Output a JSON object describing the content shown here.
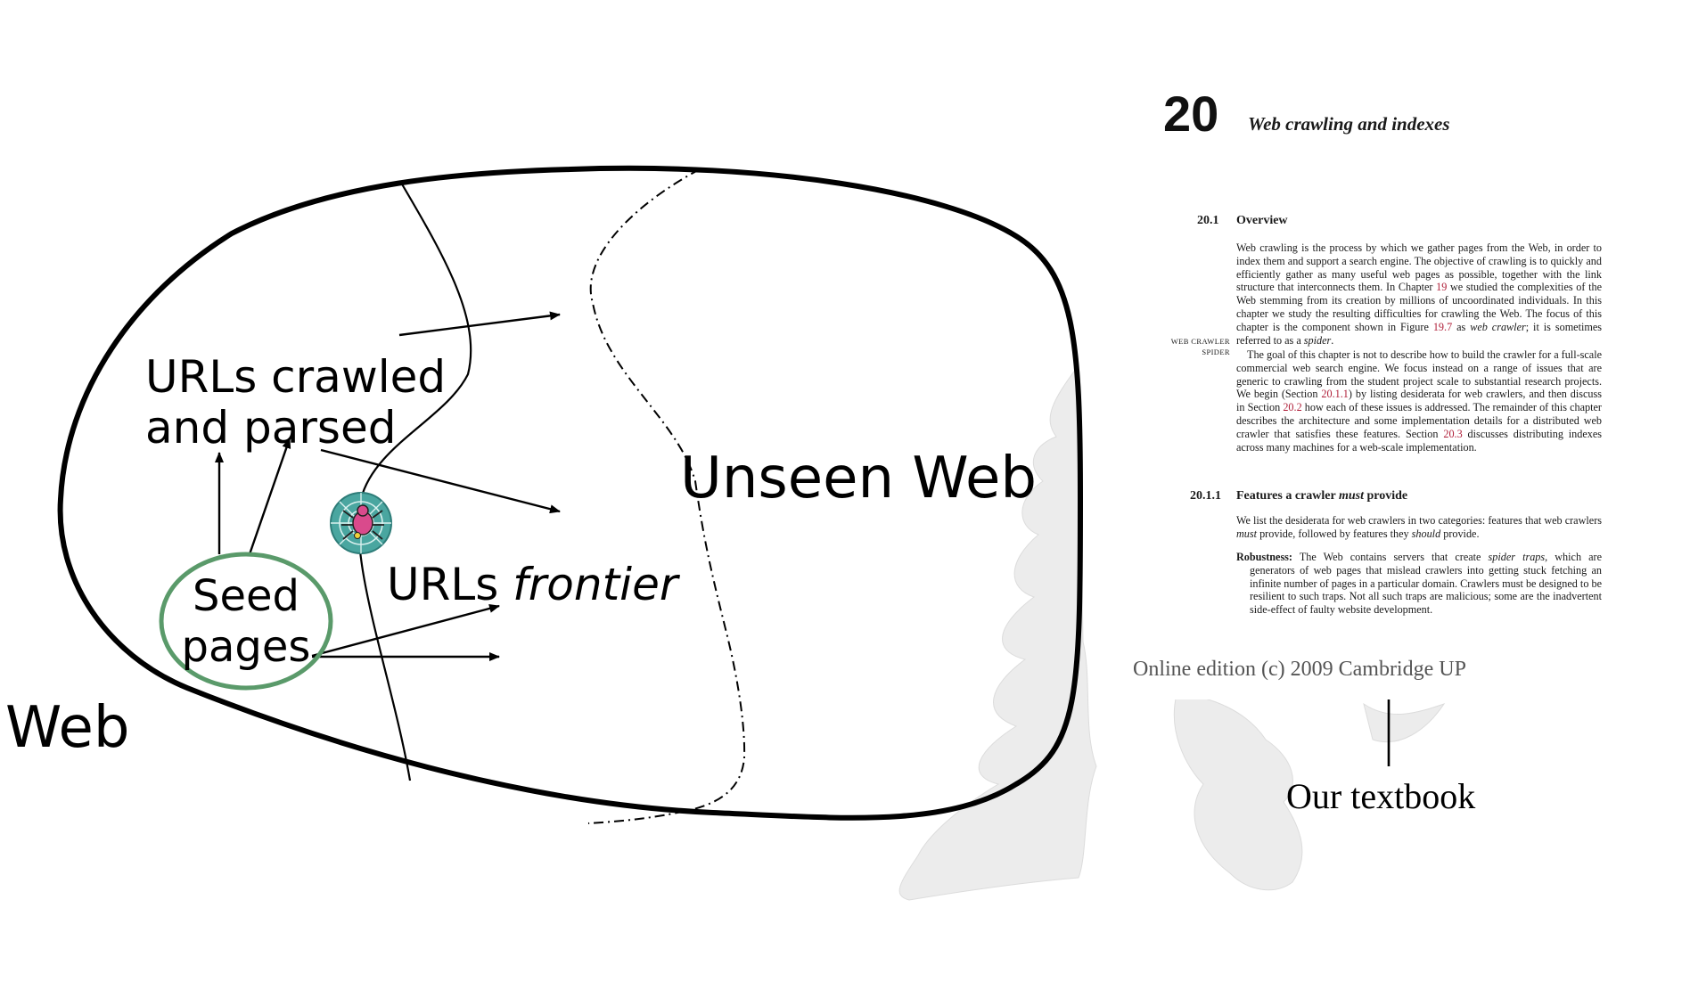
{
  "diagram": {
    "label_web": "Web",
    "label_unseen_web": "Unseen Web",
    "label_crawled_line1": "URLs crawled",
    "label_crawled_line2": "and parsed",
    "label_frontier_prefix": "URLs ",
    "label_frontier_italic": "frontier",
    "label_seed_line1": "Seed",
    "label_seed_line2": "pages",
    "seed_ring_color": "#5a9a6a",
    "spider_icon": "spider-web-icon",
    "shape_color": "#000000"
  },
  "book": {
    "chapter_number": "20",
    "chapter_title": "Web crawling and indexes",
    "section_number": "20.1",
    "section_title": "Overview",
    "para1_a": "Web crawling is the process by which we gather pages from the Web, in order to index them and support a search engine. The objective of crawling is to quickly and efficiently gather as many useful web pages as possible, together with the link structure that interconnects them. In Chapter ",
    "para1_ref_chapter": "19",
    "para1_b": " we studied the complexities of the Web stemming from its creation by millions of uncoordinated individuals. In this chapter we study the resulting difficulties for crawling the Web. The focus of this chapter is the component shown in Figure ",
    "para1_ref_figure": "19.7",
    "para1_c": " as ",
    "para1_term1": "web crawler",
    "para1_d": "; it is sometimes referred to as a ",
    "para1_term2": "spider",
    "para1_e": ".",
    "margin_note_1": "WEB CRAWLER",
    "margin_note_2": "SPIDER",
    "para2_a": "The goal of this chapter is not to describe how to build the crawler for a full-scale commercial web search engine. We focus instead on a range of issues that are generic to crawling from the student project scale to substantial research projects. We begin (Section ",
    "para2_ref1": "20.1.1",
    "para2_b": ") by listing desiderata for web crawlers, and then discuss in Section ",
    "para2_ref2": "20.2",
    "para2_c": " how each of these issues is addressed. The remainder of this chapter describes the architecture and some implementation details for a distributed web crawler that satisfies these features. Section ",
    "para2_ref3": "20.3",
    "para2_d": " discusses distributing indexes across many machines for a web-scale implementation.",
    "subsection_number": "20.1.1",
    "subsection_title_a": "Features a crawler ",
    "subsection_title_italic": "must",
    "subsection_title_b": " provide",
    "para3_a": "We list the desiderata for web crawlers in two categories: features that web crawlers ",
    "para3_must": "must",
    "para3_b": " provide, followed by features they ",
    "para3_should": "should",
    "para3_c": " provide.",
    "robustness_label": "Robustness:",
    "robustness_a": " The Web contains servers that create ",
    "robustness_term": "spider traps",
    "robustness_b": ", which are generators of web pages that mislead crawlers into getting stuck fetching an infinite number of pages in a particular domain. Crawlers must be designed to be resilient to such traps. Not all such traps are malicious; some are the inadvertent side-effect of faulty website development.",
    "edition_note": "Online edition (c) 2009 Cambridge UP",
    "caption": "Our textbook"
  }
}
